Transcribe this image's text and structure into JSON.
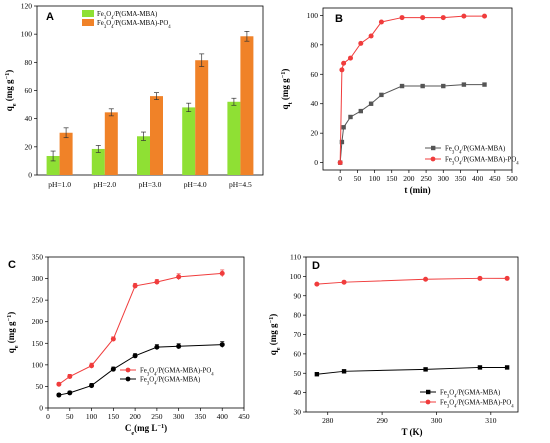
{
  "colors": {
    "green": "#8fe034",
    "orange": "#f08228",
    "red": "#f03c3c",
    "gray": "#555555",
    "black": "#000000"
  },
  "chart_data": [
    {
      "panel": "A",
      "type": "bar",
      "ylabel": "q_e (mg g^-1)",
      "categories": [
        "pH=1.0",
        "pH=2.0",
        "pH=3.0",
        "pH=4.0",
        "pH=4.5"
      ],
      "ylim": [
        0,
        120
      ],
      "yticks": [
        0,
        20,
        40,
        60,
        80,
        100,
        120
      ],
      "legend_position": "top-left",
      "series": [
        {
          "name": "Fe3O4/P(GMA-MBA)",
          "values": [
            13.5,
            18.5,
            27.5,
            48,
            52
          ],
          "errors": [
            3.5,
            2.5,
            3,
            3,
            2.5
          ]
        },
        {
          "name": "Fe3O4/P(GMA-MBA)-PO4",
          "values": [
            30,
            44.5,
            56,
            81.5,
            98.5
          ],
          "errors": [
            3.5,
            2.5,
            2.5,
            4.5,
            3.5
          ]
        }
      ]
    },
    {
      "panel": "B",
      "type": "line",
      "xlabel": "t (min)",
      "ylabel": "q_t (mg g^-1)",
      "xlim": [
        -50,
        500
      ],
      "ylim": [
        -5,
        105
      ],
      "xticks": [
        0,
        50,
        100,
        150,
        200,
        250,
        300,
        350,
        400,
        450,
        500
      ],
      "yticks": [
        0,
        20,
        40,
        60,
        80,
        100
      ],
      "legend_position": "bottom-right",
      "series": [
        {
          "name": "Fe3O4/P(GMA-MBA)",
          "x": [
            0,
            5,
            10,
            30,
            60,
            90,
            120,
            180,
            240,
            300,
            360,
            420
          ],
          "y": [
            0,
            14,
            24,
            31,
            35,
            40,
            46,
            52,
            52,
            52,
            53,
            53
          ]
        },
        {
          "name": "Fe3O4/P(GMA-MBA)-PO4",
          "x": [
            0,
            5,
            10,
            30,
            60,
            90,
            120,
            180,
            240,
            300,
            360,
            420
          ],
          "y": [
            0,
            63,
            67.5,
            71,
            81,
            86,
            95.5,
            98.5,
            98.5,
            98.5,
            99.5,
            99.5
          ]
        }
      ]
    },
    {
      "panel": "C",
      "type": "line",
      "xlabel": "C_e (mg L^-1)",
      "ylabel": "q_e (mg g^-1)",
      "xlim": [
        0,
        450
      ],
      "ylim": [
        0,
        350
      ],
      "xticks": [
        0,
        50,
        100,
        150,
        200,
        250,
        300,
        350,
        400,
        450
      ],
      "yticks": [
        0,
        50,
        100,
        150,
        200,
        250,
        300,
        350
      ],
      "legend_position": "bottom-right",
      "series": [
        {
          "name": "Fe3O4/P(GMA-MBA)-PO4",
          "x": [
            25,
            50,
            100,
            150,
            200,
            250,
            300,
            400
          ],
          "y": [
            55,
            73,
            98,
            160,
            283,
            292,
            304,
            312
          ]
        },
        {
          "name": "Fe3O4/P(GMA-MBA)",
          "x": [
            25,
            50,
            100,
            150,
            200,
            250,
            300,
            400
          ],
          "y": [
            30,
            35,
            52,
            90,
            121,
            141,
            143,
            147
          ]
        }
      ]
    },
    {
      "panel": "D",
      "type": "line",
      "xlabel": "T (K)",
      "ylabel": "q_e (mg g^-1)",
      "xlim": [
        276,
        315
      ],
      "ylim": [
        30,
        110
      ],
      "xticks": [
        280,
        290,
        300,
        310
      ],
      "yticks": [
        30,
        40,
        50,
        60,
        70,
        80,
        90,
        100,
        110
      ],
      "legend_position": "bottom-right",
      "series": [
        {
          "name": "Fe3O4/P(GMA-MBA)",
          "x": [
            278,
            283,
            298,
            308,
            313
          ],
          "y": [
            49.5,
            51,
            52,
            53,
            53
          ]
        },
        {
          "name": "Fe3O4/P(GMA-MBA)-PO4",
          "x": [
            278,
            283,
            298,
            308,
            313
          ],
          "y": [
            96,
            97,
            98.5,
            99,
            99
          ]
        }
      ]
    }
  ]
}
